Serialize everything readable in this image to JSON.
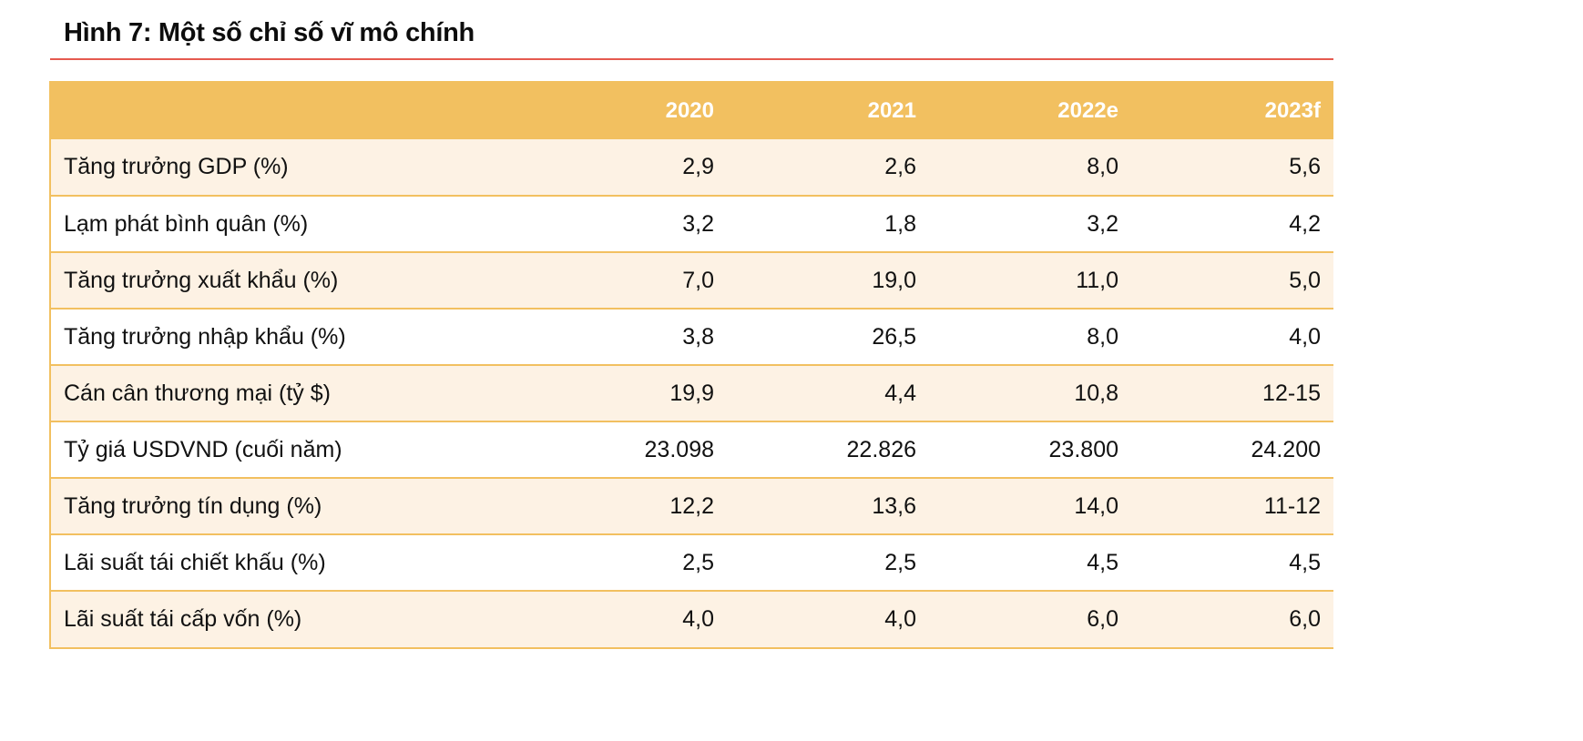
{
  "figure": {
    "title": "Hình 7: Một số chỉ số vĩ mô chính"
  },
  "colors": {
    "accent_rule": "#e55a4f",
    "header_bg": "#f2c060",
    "band_bg": "#fdf2e4"
  },
  "table": {
    "columns": [
      "",
      "2020",
      "2021",
      "2022e",
      "2023f"
    ],
    "rows": [
      {
        "label": "Tăng trưởng GDP (%)",
        "values": [
          "2,9",
          "2,6",
          "8,0",
          "5,6"
        ]
      },
      {
        "label": "Lạm phát bình quân (%)",
        "values": [
          "3,2",
          "1,8",
          "3,2",
          "4,2"
        ]
      },
      {
        "label": "Tăng trưởng xuất khẩu (%)",
        "values": [
          "7,0",
          "19,0",
          "11,0",
          "5,0"
        ]
      },
      {
        "label": "Tăng trưởng nhập khẩu (%)",
        "values": [
          "3,8",
          "26,5",
          "8,0",
          "4,0"
        ]
      },
      {
        "label": "Cán cân thương mại (tỷ $)",
        "values": [
          "19,9",
          "4,4",
          "10,8",
          "12-15"
        ]
      },
      {
        "label": "Tỷ giá USDVND (cuối năm)",
        "values": [
          "23.098",
          "22.826",
          "23.800",
          "24.200"
        ]
      },
      {
        "label": "Tăng trưởng tín dụng (%)",
        "values": [
          "12,2",
          "13,6",
          "14,0",
          "11-12"
        ]
      },
      {
        "label": "Lãi suất tái chiết khấu (%)",
        "values": [
          "2,5",
          "2,5",
          "4,5",
          "4,5"
        ]
      },
      {
        "label": "Lãi suất tái cấp vốn (%)",
        "values": [
          "4,0",
          "4,0",
          "6,0",
          "6,0"
        ]
      }
    ]
  }
}
